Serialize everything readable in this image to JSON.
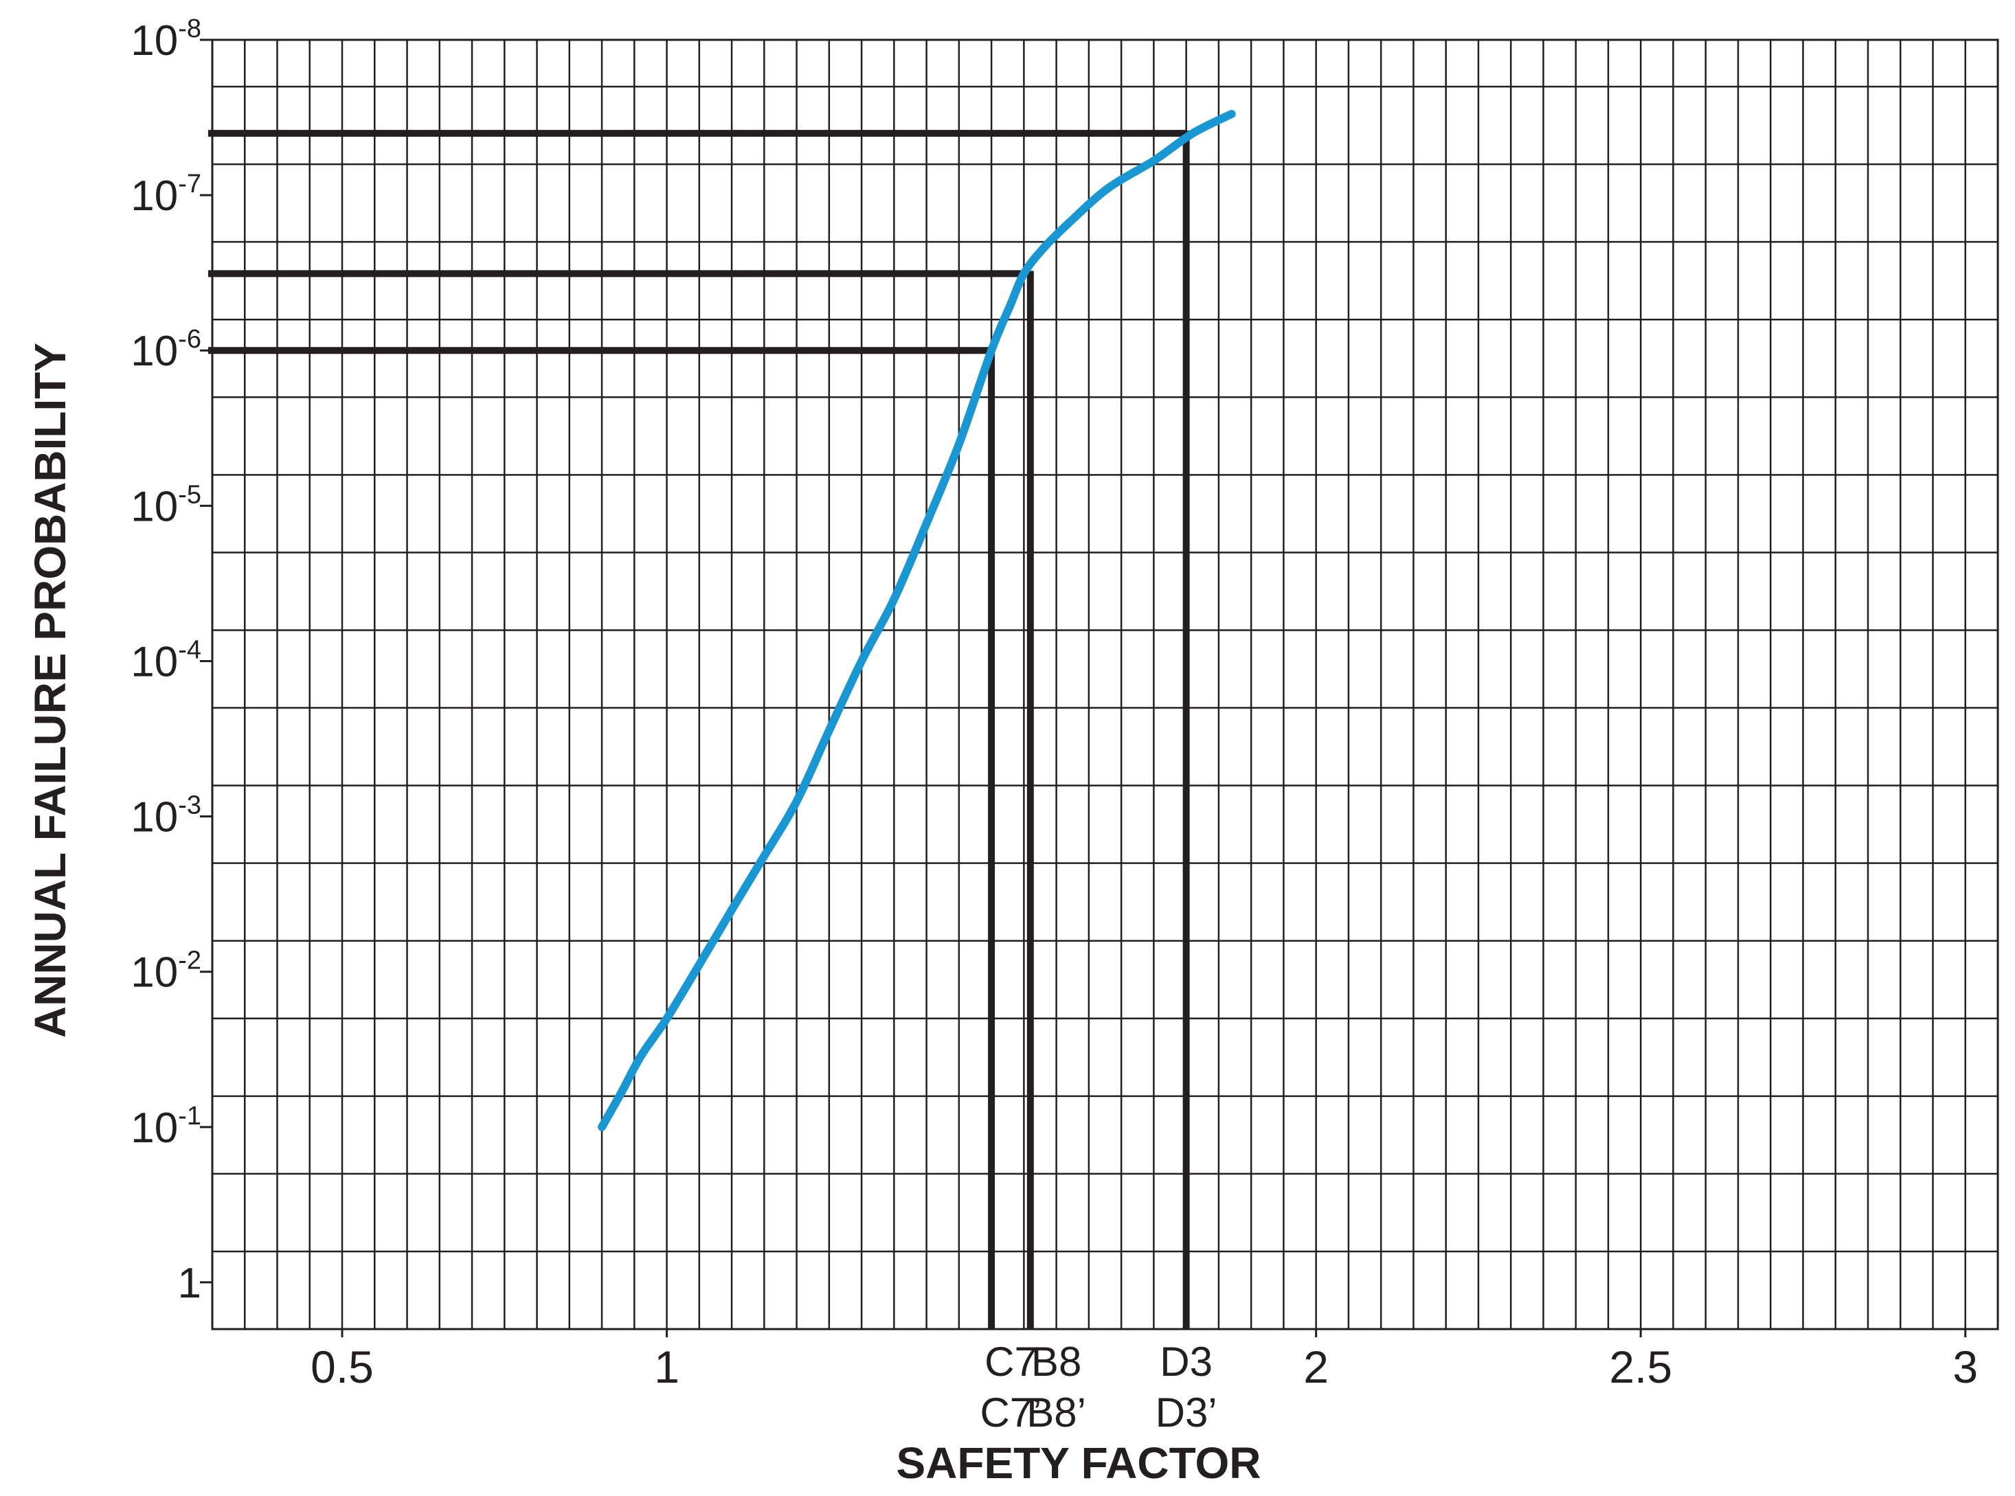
{
  "chart_data": {
    "type": "line",
    "xlabel": "SAFETY FACTOR",
    "ylabel": "ANNUAL FAILURE PROBABILITY",
    "x_scale": "linear",
    "y_scale": "log",
    "y_direction": "decreasing upward",
    "xlim": [
      0.3,
      3.05
    ],
    "ylim": [
      2,
      1e-08
    ],
    "grid": true,
    "x_ticks": [
      {
        "value": 0.5,
        "label": "0.5"
      },
      {
        "value": 1,
        "label": "1"
      },
      {
        "value": 2,
        "label": "2"
      },
      {
        "value": 2.5,
        "label": "2.5"
      },
      {
        "value": 3,
        "label": "3"
      }
    ],
    "y_ticks": [
      {
        "value": 1,
        "base": "1",
        "exp": ""
      },
      {
        "value": 0.1,
        "base": "10",
        "exp": "-1"
      },
      {
        "value": 0.01,
        "base": "10",
        "exp": "-2"
      },
      {
        "value": 0.001,
        "base": "10",
        "exp": "-3"
      },
      {
        "value": 0.0001,
        "base": "10",
        "exp": "-4"
      },
      {
        "value": 1e-05,
        "base": "10",
        "exp": "-5"
      },
      {
        "value": 1e-06,
        "base": "10",
        "exp": "-6"
      },
      {
        "value": 1e-07,
        "base": "10",
        "exp": "-7"
      },
      {
        "value": 1e-08,
        "base": "10",
        "exp": "-8"
      }
    ],
    "series": [
      {
        "color": "#1a96d2",
        "x": [
          0.9,
          0.93,
          0.96,
          1.0,
          1.05,
          1.1,
          1.15,
          1.2,
          1.25,
          1.3,
          1.35,
          1.4,
          1.45,
          1.5,
          1.53,
          1.55,
          1.58,
          1.62,
          1.68,
          1.75,
          1.81,
          1.87
        ],
        "y": [
          0.1,
          0.06,
          0.035,
          0.02,
          0.009,
          0.004,
          0.0018,
          0.0008,
          0.00028,
          0.0001,
          4e-05,
          1.3e-05,
          4e-06,
          1e-06,
          5e-07,
          3.2e-07,
          2.2e-07,
          1.5e-07,
          9e-08,
          6e-08,
          4e-08,
          3e-08
        ]
      }
    ],
    "reference_lines": [
      {
        "x": 1.5,
        "y": 1e-06
      },
      {
        "x": 1.56,
        "y": 3.2e-07
      },
      {
        "x": 1.8,
        "y": 4e-08
      }
    ],
    "annotations": [
      {
        "x": 1.53,
        "line1": "C7",
        "line2": "C7’"
      },
      {
        "x": 1.6,
        "line1": "B8",
        "line2": "B8’"
      },
      {
        "x": 1.8,
        "line1": "D3",
        "line2": "D3’"
      }
    ]
  }
}
